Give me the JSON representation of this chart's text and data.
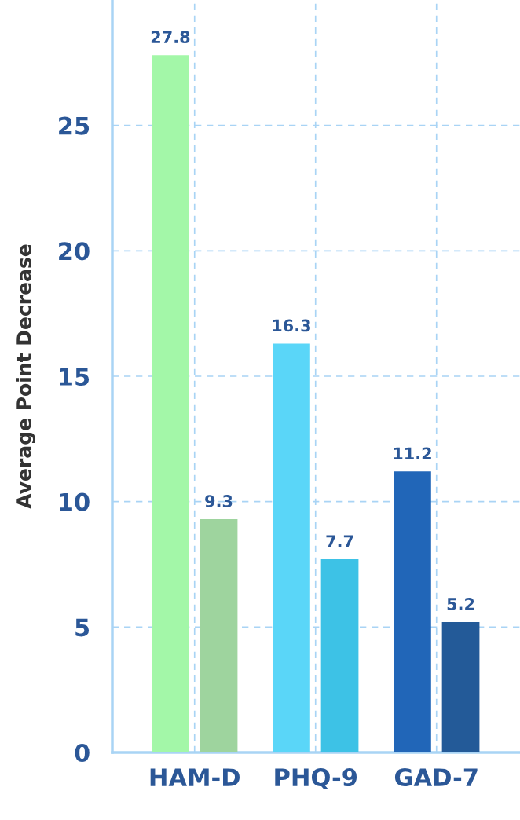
{
  "chart_data": {
    "type": "bar",
    "ylabel": "Average Point Decrease",
    "categories": [
      "HAM-D",
      "PHQ-9",
      "GAD-7"
    ],
    "series": [
      {
        "colors": [
          "#a3f7a8",
          "#5ad6f8",
          "#2166b8"
        ],
        "values": [
          27.8,
          16.3,
          11.2
        ]
      },
      {
        "colors": [
          "#9ed49e",
          "#3dc2e6",
          "#235a98"
        ],
        "values": [
          9.3,
          7.7,
          5.2
        ]
      }
    ],
    "ylim": [
      0,
      30
    ],
    "yticks": [
      0,
      5,
      10,
      15,
      20,
      25
    ],
    "grid": true,
    "data_labels": true
  }
}
